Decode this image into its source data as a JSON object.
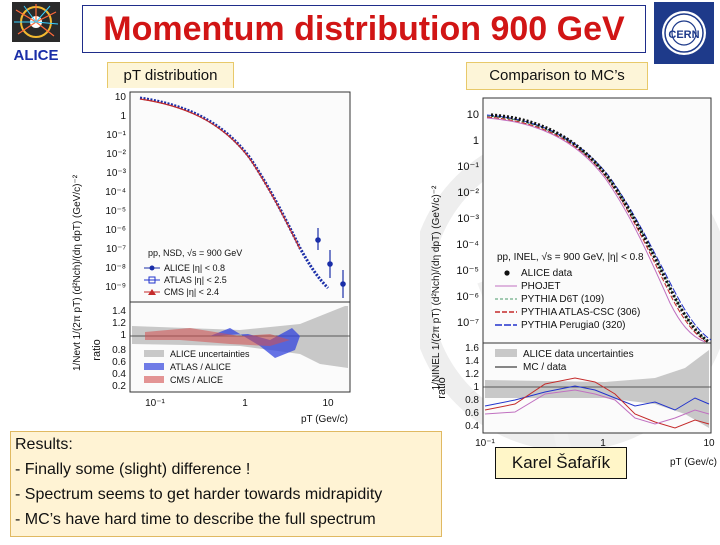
{
  "header": {
    "title": "Momentum distribution 900 GeV",
    "left_logo_icon": "alice-logo-icon",
    "left_logo_text": "ALICE",
    "right_logo_icon": "cern-logo-icon",
    "right_logo_text": "CERN"
  },
  "left_panel": {
    "subtitle": "pT distribution",
    "y_axis_label": "1/Nevt 1/(2π pT) (d²Nch)/(dη dpT) (GeV/c)⁻²",
    "y_ticks": [
      "10",
      "1",
      "10⁻¹",
      "10⁻²",
      "10⁻³",
      "10⁻⁴",
      "10⁻⁵",
      "10⁻⁶",
      "10⁻⁷",
      "10⁻⁸",
      "10⁻⁹"
    ],
    "legend_title": "pp, NSD, √s = 900 GeV",
    "legend": [
      "ALICE |η| < 0.8",
      "ATLAS |η| < 2.5",
      "CMS |η| < 2.4"
    ],
    "ratio_label": "ratio",
    "ratio_ticks": [
      "1.4",
      "1.2",
      "1",
      "0.8",
      "0.6",
      "0.4",
      "0.2"
    ],
    "ratio_legend": [
      "ALICE uncertainties",
      "ATLAS / ALICE",
      "CMS / ALICE"
    ],
    "x_ticks": [
      "10⁻¹",
      "1",
      "10"
    ],
    "x_label": "pT (Gev/c)"
  },
  "right_panel": {
    "subtitle": "Comparison to MC’s",
    "y_axis_label": "1/NINEL 1/(2π pT) (d²Nch)/(dη dpT) (GeV/c)⁻²",
    "y_ticks": [
      "10",
      "1",
      "10⁻¹",
      "10⁻²",
      "10⁻³",
      "10⁻⁴",
      "10⁻⁵",
      "10⁻⁶",
      "10⁻⁷"
    ],
    "legend_title": "pp, INEL, √s = 900 GeV, |η| < 0.8",
    "legend": [
      "ALICE data",
      "PHOJET",
      "PYTHIA D6T (109)",
      "PYTHIA ATLAS-CSC (306)",
      "PYTHIA Perugia0 (320)"
    ],
    "ratio_label": "ratio",
    "ratio_ticks": [
      "1.6",
      "1.4",
      "1.2",
      "1",
      "0.8",
      "0.6",
      "0.4"
    ],
    "ratio_legend": [
      "ALICE data uncertainties",
      "MC / data"
    ],
    "x_ticks": [
      "10⁻¹",
      "1",
      "10"
    ],
    "x_label": "pT (Gev/c)"
  },
  "results": {
    "heading": "Results:",
    "items": [
      "- Finally some (slight) difference !",
      "- Spectrum seems to get harder towards midrapidity",
      "- MC’s have hard time to describe the full spectrum"
    ]
  },
  "author": "Karel Šafařík",
  "colors": {
    "title_red": "#d11515",
    "alice_blue": "#1a2ea8",
    "atlas_blue": "#2233cc",
    "cms_red": "#c42a2a",
    "phojet": "#c070c0",
    "d6t": "#4a9a6a",
    "atlas_csc": "#c42a2a",
    "perugia": "#2233cc"
  }
}
